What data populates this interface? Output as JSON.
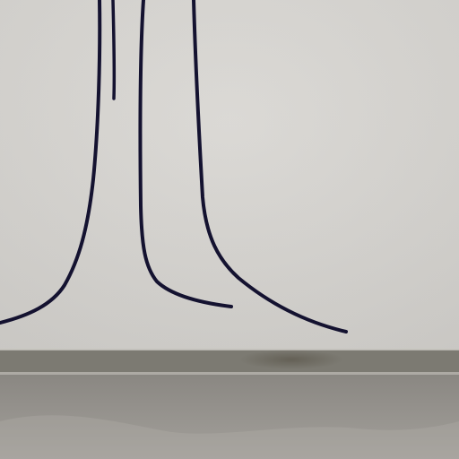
{
  "palette": {
    "wall_top": "#dad8d4",
    "wall_bottom": "#d6d4d0",
    "ink": "#141230",
    "baseboard": "#7c7a72",
    "baseboard_shadow": "#5e5a4f",
    "floor_top": "#8a8782",
    "floor_bottom": "#a3a09b"
  }
}
